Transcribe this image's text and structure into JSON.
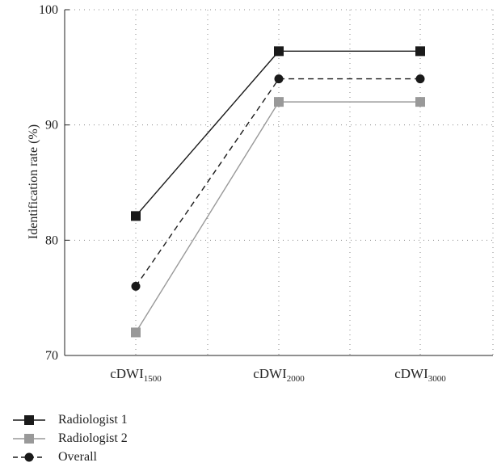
{
  "chart_data": {
    "type": "line",
    "categories": [
      {
        "base": "cDWI",
        "sub": "1500"
      },
      {
        "base": "cDWI",
        "sub": "2000"
      },
      {
        "base": "cDWI",
        "sub": "3000"
      }
    ],
    "series": [
      {
        "name": "Radiologist 1",
        "values": [
          82.1,
          96.4,
          96.4
        ],
        "color": "#1a1a1a",
        "dash": "solid",
        "marker": "square"
      },
      {
        "name": "Radiologist 2",
        "values": [
          72,
          92,
          92
        ],
        "color": "#999999",
        "dash": "solid",
        "marker": "square"
      },
      {
        "name": "Overall",
        "values": [
          76,
          94,
          94
        ],
        "color": "#1a1a1a",
        "dash": "dashed",
        "marker": "circle"
      }
    ],
    "title": "",
    "xlabel": "",
    "ylabel": "Identification rate (%)",
    "ylim": [
      70,
      100
    ],
    "yticks": [
      "70",
      "80",
      "90",
      "100"
    ],
    "grid": true,
    "legend_position": "bottom-left"
  }
}
